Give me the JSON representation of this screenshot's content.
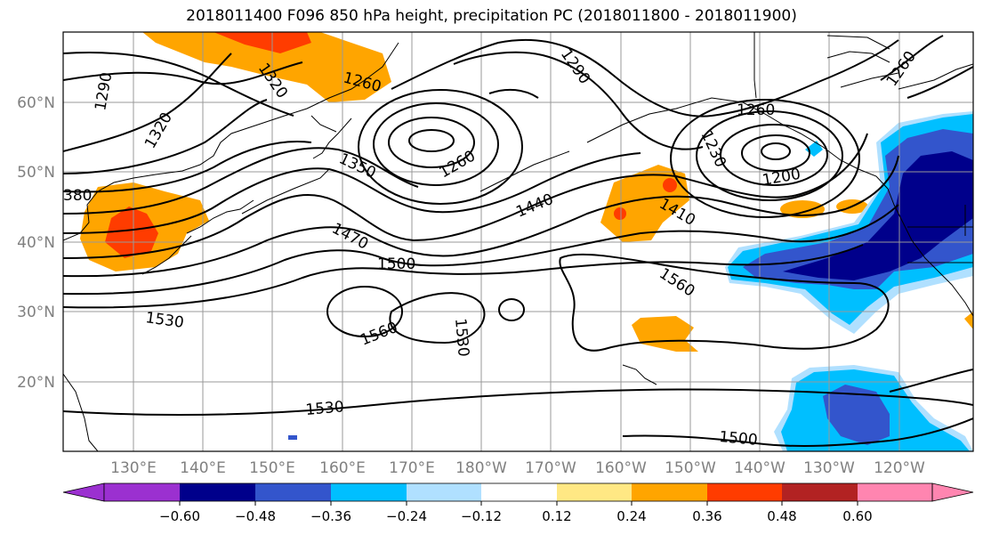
{
  "title": "2018011400 F096 850 hPa height, precipitation PC (2018011800 - 2018011900)",
  "map": {
    "lat_labels": [
      "60°N",
      "50°N",
      "40°N",
      "30°N",
      "20°N"
    ],
    "lon_labels": [
      "130°E",
      "140°E",
      "150°E",
      "160°E",
      "170°E",
      "180°W",
      "170°W",
      "160°W",
      "150°W",
      "140°W",
      "130°W",
      "120°W"
    ],
    "contour_labels": [
      "1290",
      "1320",
      "1320",
      "1260",
      "1290",
      "1260",
      "1350",
      "1260",
      "1230",
      "1260",
      "1200",
      "380",
      "1440",
      "1410",
      "1470",
      "1500",
      "1560",
      "1530",
      "1560",
      "1530",
      "1530",
      "1500"
    ]
  },
  "colorbar": {
    "ticks": [
      "−0.60",
      "−0.48",
      "−0.36",
      "−0.24",
      "−0.12",
      "0.12",
      "0.24",
      "0.36",
      "0.48",
      "0.60"
    ],
    "colors": [
      "#9b30d0",
      "#00008b",
      "#3355cc",
      "#00bfff",
      "#b0e0ff",
      "#ffffff",
      "#ffe884",
      "#ffa500",
      "#ff3c00",
      "#b22222",
      "#ff85b0"
    ]
  },
  "colors": {
    "pos_weak": "#ffe884",
    "pos_mid": "#ffa500",
    "pos_strong": "#ff3c00",
    "neg_weak": "#b0e0ff",
    "neg_mid": "#00bfff",
    "neg_strong": "#3355cc",
    "neg_xstrong": "#00008b",
    "grid": "#999999",
    "contour": "#000000",
    "coast": "#000000"
  }
}
